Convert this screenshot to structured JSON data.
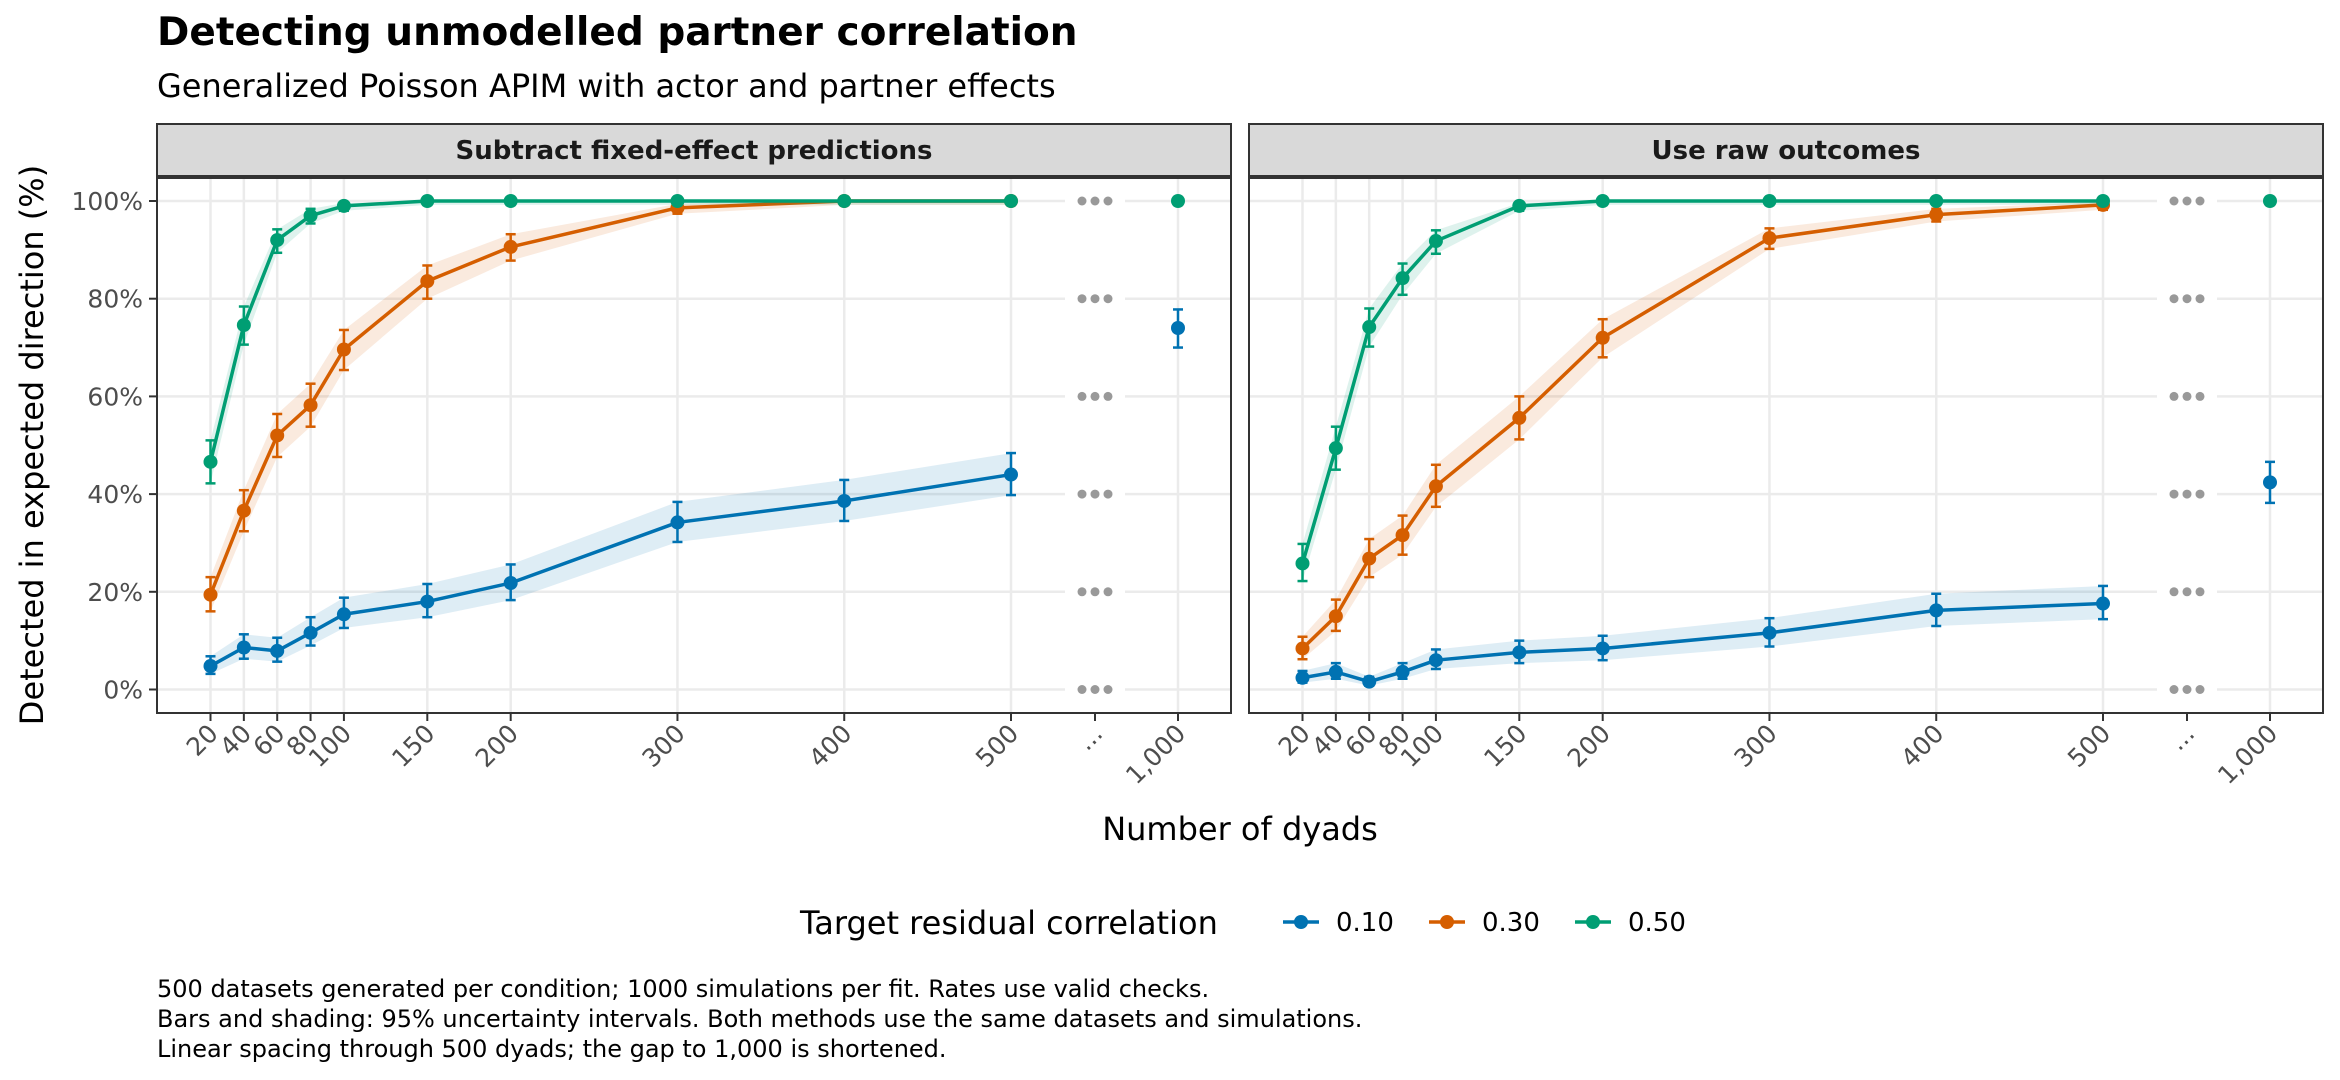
{
  "chart_data": {
    "type": "line",
    "title": "Detecting unmodelled partner correlation",
    "subtitle": "Generalized Poisson APIM with actor and partner effects",
    "xlabel": "Number of dyads",
    "ylabel": "Detected in expected direction (%)",
    "x_tick_labels": [
      "20",
      "40",
      "60",
      "80",
      "100",
      "150",
      "200",
      "300",
      "400",
      "500",
      "...",
      "1,000"
    ],
    "y_ticks": [
      0,
      20,
      40,
      60,
      80,
      100
    ],
    "y_tick_labels": [
      "0%",
      "20%",
      "40%",
      "60%",
      "80%",
      "100%"
    ],
    "ylim": [
      -5,
      110
    ],
    "grid": true,
    "legend": {
      "title": "Target residual correlation",
      "position": "bottom",
      "entries": [
        {
          "label": "0.10",
          "color": "#0072B2"
        },
        {
          "label": "0.30",
          "color": "#D55E00"
        },
        {
          "label": "0.50",
          "color": "#009E73"
        }
      ]
    },
    "x_positions": [
      20,
      40,
      60,
      80,
      100,
      150,
      200,
      300,
      400,
      500
    ],
    "x_extra": 1000,
    "panels": [
      {
        "strip": "Subtract fixed-effect predictions",
        "series": [
          {
            "name": "0.10",
            "color": "#0072B2",
            "values": [
              4.8,
              8.6,
              7.9,
              11.6,
              15.4,
              18.0,
              21.8,
              34.2,
              38.6,
              44.0
            ],
            "extra": 74.0,
            "lower": [
              3.2,
              6.3,
              5.7,
              9.0,
              12.6,
              14.8,
              18.3,
              30.2,
              34.5,
              39.8
            ],
            "upper": [
              6.8,
              11.3,
              10.6,
              14.8,
              18.8,
              21.6,
              25.6,
              38.4,
              42.9,
              48.4
            ],
            "extra_ci": [
              70.0,
              77.8
            ]
          },
          {
            "name": "0.30",
            "color": "#D55E00",
            "values": [
              19.4,
              36.6,
              52.0,
              58.2,
              69.6,
              83.6,
              90.6,
              98.6,
              100.0,
              100.0
            ],
            "lower": [
              16.0,
              32.4,
              47.6,
              53.8,
              65.4,
              80.0,
              87.8,
              97.4,
              99.2,
              99.2
            ],
            "upper": [
              23.0,
              40.8,
              56.4,
              62.6,
              73.6,
              86.8,
              93.2,
              99.4,
              100.0,
              100.0
            ]
          },
          {
            "name": "0.50",
            "color": "#009E73",
            "values": [
              46.6,
              74.6,
              92.0,
              97.0,
              99.0,
              100.0,
              100.0,
              100.0,
              100.0,
              100.0
            ],
            "extra": 100.0,
            "lower": [
              42.2,
              70.6,
              89.4,
              95.4,
              98.0,
              99.2,
              99.2,
              99.2,
              99.2,
              99.2
            ],
            "upper": [
              51.0,
              78.4,
              94.2,
              98.4,
              99.6,
              100.0,
              100.0,
              100.0,
              100.0,
              100.0
            ],
            "extra_ci": [
              99.2,
              100.0
            ]
          }
        ]
      },
      {
        "strip": "Use raw outcomes",
        "series": [
          {
            "name": "0.10",
            "color": "#0072B2",
            "values": [
              2.4,
              3.6,
              1.6,
              3.6,
              6.0,
              7.6,
              8.4,
              11.6,
              16.2,
              17.6
            ],
            "extra": 42.4,
            "lower": [
              1.4,
              2.2,
              0.8,
              2.2,
              4.2,
              5.4,
              6.0,
              8.8,
              13.0,
              14.4
            ],
            "upper": [
              3.8,
              5.4,
              2.6,
              5.4,
              8.2,
              10.0,
              11.0,
              14.6,
              19.6,
              21.2
            ],
            "extra_ci": [
              38.2,
              46.6
            ]
          },
          {
            "name": "0.30",
            "color": "#D55E00",
            "values": [
              8.4,
              15.0,
              26.8,
              31.6,
              41.6,
              55.6,
              72.0,
              92.4,
              97.2,
              99.2
            ],
            "lower": [
              6.2,
              12.0,
              23.0,
              27.6,
              37.4,
              51.2,
              68.0,
              90.2,
              95.8,
              98.2
            ],
            "upper": [
              10.8,
              18.4,
              30.8,
              35.6,
              46.0,
              60.0,
              75.8,
              94.4,
              98.4,
              99.8
            ]
          },
          {
            "name": "0.50",
            "color": "#009E73",
            "values": [
              25.8,
              49.4,
              74.2,
              84.2,
              91.8,
              99.0,
              100.0,
              100.0,
              100.0,
              100.0
            ],
            "extra": 100.0,
            "lower": [
              22.2,
              45.0,
              70.2,
              80.8,
              89.2,
              98.0,
              99.2,
              99.2,
              99.2,
              99.2
            ],
            "upper": [
              29.8,
              53.8,
              78.0,
              87.2,
              94.0,
              99.6,
              100.0,
              100.0,
              100.0,
              100.0
            ],
            "extra_ci": [
              99.2,
              100.0
            ]
          }
        ]
      }
    ],
    "caption": [
      "500 datasets generated per condition; 1000 simulations per fit. Rates use valid checks.",
      "Bars and shading: 95% uncertainty intervals. Both methods use the same datasets and simulations.",
      "Linear spacing through 500 dyads; the gap to 1,000 is shortened."
    ]
  }
}
